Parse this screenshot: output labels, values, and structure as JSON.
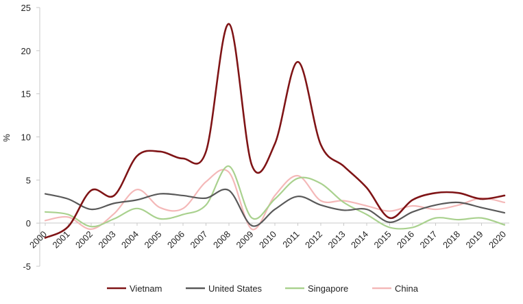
{
  "chart_data": {
    "type": "line",
    "title": "",
    "xlabel": "",
    "ylabel": "%",
    "ylim": [
      -5,
      25
    ],
    "yticks": [
      -5,
      0,
      5,
      10,
      15,
      20,
      25
    ],
    "grid": false,
    "legend_position": "bottom",
    "categories": [
      "2000",
      "2001",
      "2002",
      "2003",
      "2004",
      "2005",
      "2006",
      "2007",
      "2008",
      "2009",
      "2010",
      "2011",
      "2012",
      "2013",
      "2014",
      "2015",
      "2016",
      "2017",
      "2018",
      "2019",
      "2020"
    ],
    "series": [
      {
        "name": "Vietnam",
        "color": "#7f1416",
        "values": [
          -1.7,
          -0.4,
          3.8,
          3.2,
          7.8,
          8.3,
          7.5,
          8.3,
          23.1,
          6.7,
          9.2,
          18.7,
          9.1,
          6.6,
          4.1,
          0.6,
          2.7,
          3.5,
          3.5,
          2.8,
          3.2
        ]
      },
      {
        "name": "United States",
        "color": "#595959",
        "values": [
          3.4,
          2.8,
          1.6,
          2.3,
          2.7,
          3.4,
          3.2,
          2.9,
          3.8,
          -0.3,
          1.6,
          3.1,
          2.1,
          1.5,
          1.6,
          0.1,
          1.3,
          2.1,
          2.4,
          1.8,
          1.2
        ]
      },
      {
        "name": "Singapore",
        "color": "#a9d18e",
        "values": [
          1.3,
          1.0,
          -0.4,
          0.5,
          1.7,
          0.5,
          1.0,
          2.1,
          6.6,
          0.6,
          2.8,
          5.2,
          4.6,
          2.4,
          1.0,
          -0.5,
          -0.5,
          0.6,
          0.4,
          0.6,
          -0.2
        ]
      },
      {
        "name": "China",
        "color": "#f4b8b8",
        "values": [
          0.3,
          0.7,
          -0.7,
          1.1,
          3.9,
          1.8,
          1.7,
          4.8,
          5.9,
          -0.7,
          3.2,
          5.5,
          2.6,
          2.6,
          2.0,
          1.4,
          2.0,
          1.6,
          2.1,
          2.9,
          2.4
        ]
      }
    ]
  }
}
